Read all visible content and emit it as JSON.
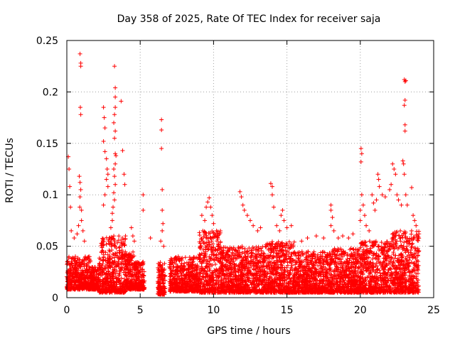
{
  "chart_data": {
    "type": "scatter",
    "title": "Day 358 of 2025, Rate Of TEC Index for receiver saja",
    "xlabel": "GPS time / hours",
    "ylabel": "ROTI / TECUs",
    "xlim": [
      0,
      25
    ],
    "ylim": [
      0,
      0.25
    ],
    "xticks": [
      "0",
      "5",
      "10",
      "15",
      "20",
      "25"
    ],
    "yticks": [
      "0",
      "0.05",
      "0.1",
      "0.15",
      "0.2",
      "0.25"
    ],
    "grid": true,
    "marker": "+",
    "color": "#ff0000",
    "series": [
      {
        "name": "ROTI",
        "points": [
          [
            0.1,
            0.137
          ],
          [
            0.15,
            0.125
          ],
          [
            0.2,
            0.108
          ],
          [
            0.25,
            0.088
          ],
          [
            0.3,
            0.065
          ],
          [
            0.5,
            0.058
          ],
          [
            0.9,
            0.237
          ],
          [
            0.95,
            0.228
          ],
          [
            0.95,
            0.225
          ],
          [
            0.92,
            0.185
          ],
          [
            0.95,
            0.178
          ],
          [
            0.85,
            0.118
          ],
          [
            0.9,
            0.112
          ],
          [
            0.95,
            0.105
          ],
          [
            0.9,
            0.098
          ],
          [
            0.88,
            0.088
          ],
          [
            1.0,
            0.085
          ],
          [
            1.0,
            0.075
          ],
          [
            0.8,
            0.07
          ],
          [
            1.1,
            0.065
          ],
          [
            0.7,
            0.062
          ],
          [
            1.2,
            0.055
          ],
          [
            2.5,
            0.185
          ],
          [
            2.55,
            0.175
          ],
          [
            2.6,
            0.165
          ],
          [
            2.5,
            0.152
          ],
          [
            2.6,
            0.142
          ],
          [
            2.7,
            0.135
          ],
          [
            2.75,
            0.125
          ],
          [
            2.8,
            0.12
          ],
          [
            2.7,
            0.115
          ],
          [
            2.8,
            0.108
          ],
          [
            2.6,
            0.1
          ],
          [
            2.5,
            0.09
          ],
          [
            3.25,
            0.225
          ],
          [
            3.3,
            0.204
          ],
          [
            3.3,
            0.195
          ],
          [
            3.3,
            0.185
          ],
          [
            3.25,
            0.178
          ],
          [
            3.2,
            0.17
          ],
          [
            3.3,
            0.162
          ],
          [
            3.25,
            0.155
          ],
          [
            3.3,
            0.14
          ],
          [
            3.35,
            0.138
          ],
          [
            3.3,
            0.13
          ],
          [
            3.2,
            0.125
          ],
          [
            3.25,
            0.118
          ],
          [
            3.3,
            0.11
          ],
          [
            3.2,
            0.102
          ],
          [
            3.25,
            0.095
          ],
          [
            3.15,
            0.088
          ],
          [
            3.1,
            0.082
          ],
          [
            3.1,
            0.075
          ],
          [
            3.0,
            0.068
          ],
          [
            3.2,
            0.06
          ],
          [
            2.9,
            0.058
          ],
          [
            3.7,
            0.191
          ],
          [
            3.8,
            0.143
          ],
          [
            3.9,
            0.12
          ],
          [
            3.95,
            0.11
          ],
          [
            4.0,
            0.06
          ],
          [
            4.4,
            0.068
          ],
          [
            4.5,
            0.06
          ],
          [
            4.6,
            0.055
          ],
          [
            5.2,
            0.1
          ],
          [
            5.2,
            0.085
          ],
          [
            5.7,
            0.058
          ],
          [
            6.45,
            0.173
          ],
          [
            6.45,
            0.163
          ],
          [
            6.45,
            0.145
          ],
          [
            6.5,
            0.105
          ],
          [
            6.5,
            0.085
          ],
          [
            6.55,
            0.072
          ],
          [
            6.5,
            0.065
          ],
          [
            6.4,
            0.055
          ],
          [
            6.6,
            0.05
          ],
          [
            9.2,
            0.08
          ],
          [
            9.4,
            0.075
          ],
          [
            9.5,
            0.088
          ],
          [
            9.6,
            0.093
          ],
          [
            9.7,
            0.097
          ],
          [
            9.8,
            0.088
          ],
          [
            9.9,
            0.08
          ],
          [
            10.0,
            0.072
          ],
          [
            10.2,
            0.065
          ],
          [
            11.8,
            0.103
          ],
          [
            11.9,
            0.098
          ],
          [
            12.0,
            0.09
          ],
          [
            12.1,
            0.085
          ],
          [
            12.3,
            0.08
          ],
          [
            12.5,
            0.075
          ],
          [
            12.7,
            0.07
          ],
          [
            13.0,
            0.065
          ],
          [
            13.2,
            0.068
          ],
          [
            13.9,
            0.111
          ],
          [
            14.0,
            0.108
          ],
          [
            14.0,
            0.1
          ],
          [
            14.1,
            0.088
          ],
          [
            14.3,
            0.07
          ],
          [
            14.5,
            0.065
          ],
          [
            14.6,
            0.08
          ],
          [
            14.7,
            0.085
          ],
          [
            14.8,
            0.075
          ],
          [
            15.0,
            0.068
          ],
          [
            15.3,
            0.07
          ],
          [
            16.0,
            0.055
          ],
          [
            16.4,
            0.058
          ],
          [
            17.0,
            0.06
          ],
          [
            17.5,
            0.058
          ],
          [
            18.0,
            0.09
          ],
          [
            18.0,
            0.085
          ],
          [
            18.1,
            0.078
          ],
          [
            18.0,
            0.07
          ],
          [
            18.2,
            0.065
          ],
          [
            18.5,
            0.058
          ],
          [
            18.8,
            0.06
          ],
          [
            19.2,
            0.058
          ],
          [
            19.5,
            0.062
          ],
          [
            20.0,
            0.075
          ],
          [
            20.05,
            0.145
          ],
          [
            20.1,
            0.14
          ],
          [
            20.05,
            0.132
          ],
          [
            20.1,
            0.1
          ],
          [
            20.2,
            0.09
          ],
          [
            20.0,
            0.085
          ],
          [
            20.3,
            0.08
          ],
          [
            20.4,
            0.07
          ],
          [
            20.6,
            0.065
          ],
          [
            20.8,
            0.1
          ],
          [
            20.9,
            0.092
          ],
          [
            21.0,
            0.085
          ],
          [
            21.1,
            0.095
          ],
          [
            21.2,
            0.12
          ],
          [
            21.25,
            0.115
          ],
          [
            21.3,
            0.108
          ],
          [
            21.5,
            0.1
          ],
          [
            21.7,
            0.098
          ],
          [
            22.0,
            0.105
          ],
          [
            22.1,
            0.11
          ],
          [
            22.2,
            0.13
          ],
          [
            22.3,
            0.125
          ],
          [
            22.4,
            0.12
          ],
          [
            22.5,
            0.1
          ],
          [
            22.6,
            0.095
          ],
          [
            22.8,
            0.09
          ],
          [
            22.9,
            0.133
          ],
          [
            22.95,
            0.13
          ],
          [
            23.0,
            0.12
          ],
          [
            23.0,
            0.212
          ],
          [
            23.05,
            0.21
          ],
          [
            23.1,
            0.211
          ],
          [
            23.05,
            0.192
          ],
          [
            23.0,
            0.187
          ],
          [
            23.05,
            0.168
          ],
          [
            23.05,
            0.162
          ],
          [
            23.1,
            0.1
          ],
          [
            23.2,
            0.09
          ],
          [
            23.5,
            0.107
          ],
          [
            23.6,
            0.08
          ],
          [
            23.7,
            0.075
          ],
          [
            23.8,
            0.07
          ],
          [
            23.9,
            0.06
          ]
        ],
        "dense_band": {
          "description": "dense background samples",
          "segments": [
            [
              0.0,
              1.6,
              0.008,
              0.04
            ],
            [
              1.6,
              2.2,
              0.008,
              0.03
            ],
            [
              2.2,
              4.0,
              0.005,
              0.06
            ],
            [
              4.0,
              4.6,
              0.008,
              0.045
            ],
            [
              4.6,
              5.3,
              0.008,
              0.035
            ],
            [
              6.2,
              6.7,
              0.003,
              0.035
            ],
            [
              7.0,
              9.0,
              0.006,
              0.04
            ],
            [
              9.0,
              10.5,
              0.005,
              0.065
            ],
            [
              10.5,
              13.5,
              0.005,
              0.05
            ],
            [
              13.5,
              15.5,
              0.005,
              0.055
            ],
            [
              15.5,
              18.0,
              0.005,
              0.045
            ],
            [
              18.0,
              20.0,
              0.005,
              0.048
            ],
            [
              20.0,
              22.0,
              0.005,
              0.055
            ],
            [
              22.0,
              24.0,
              0.005,
              0.065
            ]
          ]
        }
      }
    ]
  }
}
